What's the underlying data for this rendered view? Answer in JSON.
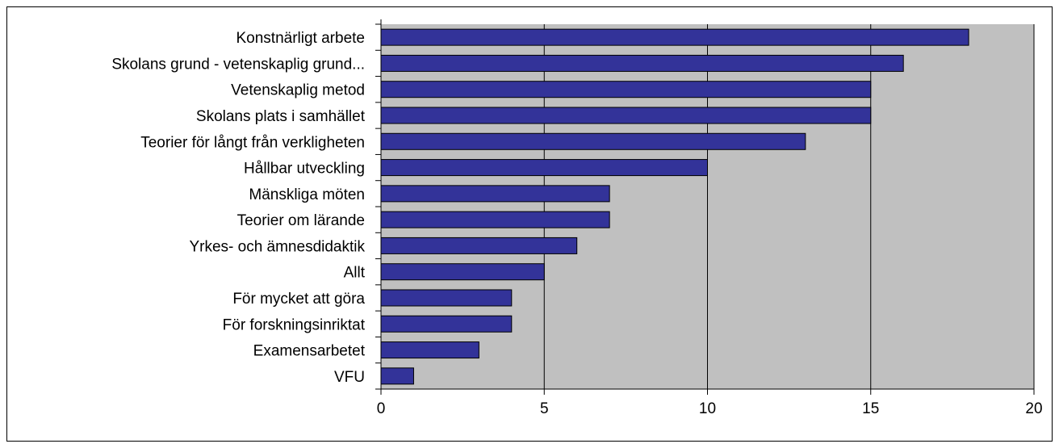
{
  "chart_data": {
    "type": "bar",
    "orientation": "horizontal",
    "categories": [
      "Konstnärligt arbete",
      "Skolans grund - vetenskaplig grund...",
      "Vetenskaplig metod",
      "Skolans plats i samhället",
      "Teorier för långt från verkligheten",
      "Hållbar utveckling",
      "Mänskliga möten",
      "Teorier om lärande",
      "Yrkes- och ämnesdidaktik",
      "Allt",
      "För mycket att göra",
      "För forskningsinriktat",
      "Examensarbetet",
      "VFU"
    ],
    "values": [
      18,
      16,
      15,
      15,
      13,
      10,
      7,
      7,
      6,
      5,
      4,
      4,
      3,
      1
    ],
    "xlim": [
      0,
      20
    ],
    "xticks": [
      0,
      5,
      10,
      15,
      20
    ],
    "grid": "vertical",
    "legend": "none",
    "colors": {
      "bar_fill": "#333399",
      "bar_stroke": "#000000",
      "plot_background": "#c0c0c0",
      "gridline": "#000000"
    }
  }
}
